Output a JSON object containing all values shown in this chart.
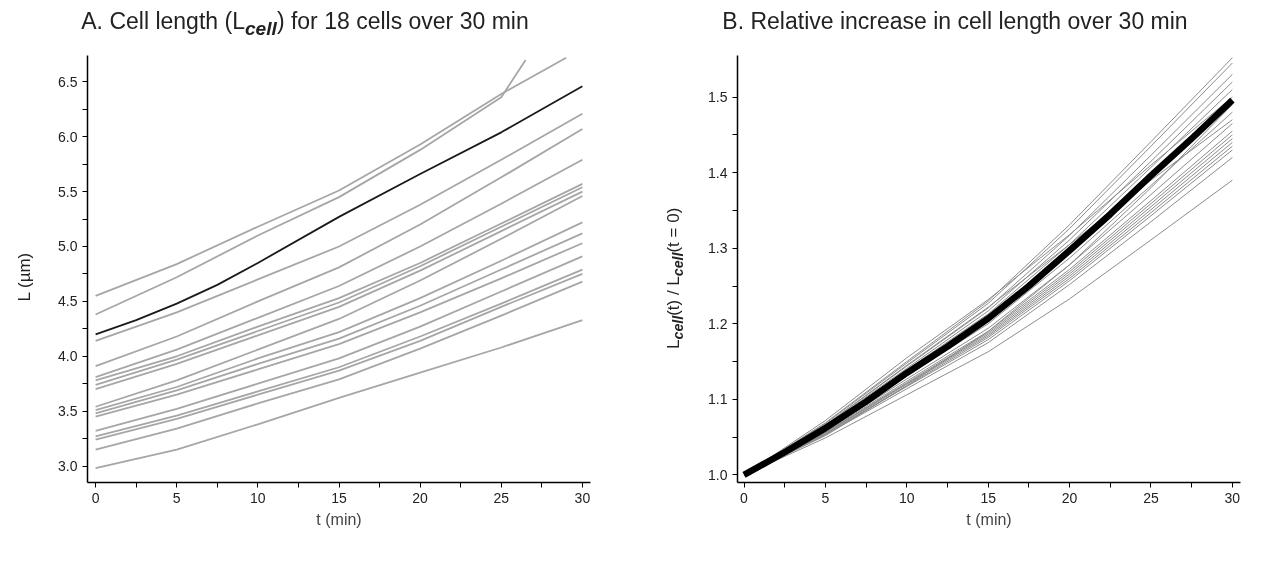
{
  "chart_data": [
    {
      "type": "line",
      "title": "A. Cell length (L$_{cell}$) for 18 cells over 30 min",
      "xlabel": "t (min)",
      "ylabel": "L (µm)",
      "xlim": [
        -0.5,
        30.5
      ],
      "ylim": [
        2.85,
        6.74
      ],
      "xticks": [
        0,
        {
          "value": 2.5,
          "label": null
        },
        5,
        {
          "value": 7.5,
          "label": null
        },
        10,
        {
          "value": 12.5,
          "label": null
        },
        15,
        {
          "value": 17.5,
          "label": null
        },
        20,
        {
          "value": 22.5,
          "label": null
        },
        25,
        {
          "value": 27.5,
          "label": null
        },
        30
      ],
      "yticks": [
        {
          "value": 3,
          "label": "3.0"
        },
        {
          "value": 3.25,
          "label": null
        },
        3.5,
        {
          "value": 3.75,
          "label": null
        },
        {
          "value": 4,
          "label": "4.0"
        },
        {
          "value": 4.25,
          "label": null
        },
        4.5,
        {
          "value": 4.75,
          "label": null
        },
        {
          "value": 5,
          "label": "5.0"
        },
        {
          "value": 5.25,
          "label": null
        },
        5.5,
        {
          "value": 5.75,
          "label": null
        },
        {
          "value": 6,
          "label": "6.0"
        },
        {
          "value": 6.25,
          "label": null
        },
        6.5
      ],
      "x": [
        0,
        5,
        10,
        15,
        20,
        25,
        30
      ],
      "series": [
        {
          "color": "#a6a6a6",
          "x": [
            0,
            5,
            10,
            15,
            20,
            25,
            29
          ],
          "values": [
            4.55,
            4.84,
            5.18,
            5.51,
            5.93,
            6.39,
            6.72
          ]
        },
        {
          "color": "#a6a6a6",
          "x": [
            0,
            5,
            10,
            15,
            20,
            25,
            26.5
          ],
          "values": [
            4.38,
            4.72,
            5.1,
            5.45,
            5.88,
            6.36,
            6.7
          ]
        },
        {
          "color": "#a6a6a6",
          "values": [
            4.14,
            4.4,
            4.7,
            5.0,
            5.38,
            5.79,
            6.21
          ]
        },
        {
          "color": "#a6a6a6",
          "values": [
            3.91,
            4.18,
            4.5,
            4.81,
            5.2,
            5.63,
            6.07
          ]
        },
        {
          "color": "#a6a6a6",
          "values": [
            3.81,
            4.06,
            4.35,
            4.64,
            5.0,
            5.39,
            5.79
          ]
        },
        {
          "color": "#a6a6a6",
          "values": [
            3.78,
            4.0,
            4.27,
            4.53,
            4.85,
            5.21,
            5.57
          ]
        },
        {
          "color": "#a6a6a6",
          "values": [
            3.74,
            3.97,
            4.23,
            4.49,
            4.82,
            5.18,
            5.54
          ]
        },
        {
          "color": "#a6a6a6",
          "values": [
            3.7,
            3.93,
            4.19,
            4.45,
            4.78,
            5.14,
            5.5
          ]
        },
        {
          "color": "#a6a6a6",
          "values": [
            3.54,
            3.78,
            4.06,
            4.34,
            4.69,
            5.07,
            5.46
          ]
        },
        {
          "color": "#a6a6a6",
          "values": [
            3.51,
            3.72,
            3.98,
            4.22,
            4.53,
            4.87,
            5.22
          ]
        },
        {
          "color": "#a6a6a6",
          "values": [
            3.48,
            3.69,
            3.93,
            4.16,
            4.46,
            4.79,
            5.12
          ]
        },
        {
          "color": "#a6a6a6",
          "values": [
            3.45,
            3.65,
            3.88,
            4.11,
            4.4,
            4.71,
            5.03
          ]
        },
        {
          "color": "#a6a6a6",
          "values": [
            3.32,
            3.52,
            3.75,
            3.98,
            4.27,
            4.59,
            4.91
          ]
        },
        {
          "color": "#a6a6a6",
          "values": [
            3.27,
            3.46,
            3.68,
            3.9,
            4.18,
            4.48,
            4.79
          ]
        },
        {
          "color": "#a6a6a6",
          "values": [
            3.24,
            3.43,
            3.65,
            3.87,
            4.14,
            4.45,
            4.75
          ]
        },
        {
          "color": "#a6a6a6",
          "values": [
            3.15,
            3.34,
            3.57,
            3.79,
            4.07,
            4.37,
            4.68
          ]
        },
        {
          "color": "#a6a6a6",
          "values": [
            2.98,
            3.15,
            3.38,
            3.62,
            3.85,
            4.08,
            4.33
          ]
        },
        {
          "color": "#1a1a1a",
          "x": [
            0,
            2.5,
            5,
            7.5,
            10,
            15,
            20,
            25,
            30
          ],
          "values": [
            4.2,
            4.33,
            4.48,
            4.65,
            4.85,
            5.27,
            5.66,
            6.04,
            6.46
          ]
        }
      ]
    },
    {
      "type": "line",
      "title": "B. Relative increase in cell length over 30 min",
      "xlabel": "t (min)",
      "ylabel": "L$_{cell}$(t) / L$_{cell}$(t = 0)",
      "xlim": [
        -0.4,
        30.5
      ],
      "ylim": [
        0.99,
        1.555
      ],
      "xticks": [
        0,
        {
          "value": 2.5,
          "label": null
        },
        5,
        {
          "value": 7.5,
          "label": null
        },
        10,
        {
          "value": 12.5,
          "label": null
        },
        15,
        {
          "value": 17.5,
          "label": null
        },
        20,
        {
          "value": 22.5,
          "label": null
        },
        25,
        {
          "value": 27.5,
          "label": null
        },
        30
      ],
      "yticks": [
        {
          "value": 1,
          "label": "1.0"
        },
        {
          "value": 1.05,
          "label": null
        },
        1.1,
        {
          "value": 1.15,
          "label": null
        },
        1.2,
        {
          "value": 1.25,
          "label": null
        },
        1.3,
        {
          "value": 1.35,
          "label": null
        },
        1.4,
        {
          "value": 1.45,
          "label": null
        },
        1.5
      ],
      "x": [
        0,
        5,
        10,
        15,
        20,
        25,
        30
      ],
      "series": [
        {
          "color": "#8c8c8c",
          "values": [
            1,
            1.069,
            1.15,
            1.23,
            1.331,
            1.441,
            1.552
          ]
        },
        {
          "color": "#8c8c8c",
          "values": [
            1,
            1.068,
            1.148,
            1.227,
            1.326,
            1.435,
            1.545
          ]
        },
        {
          "color": "#8c8c8c",
          "values": [
            1,
            1.066,
            1.144,
            1.221,
            1.317,
            1.423,
            1.53
          ]
        },
        {
          "color": "#8c8c8c",
          "values": [
            1,
            1.065,
            1.141,
            1.217,
            1.311,
            1.415,
            1.52
          ]
        },
        {
          "color": "#8c8c8c",
          "values": [
            1,
            1.064,
            1.139,
            1.213,
            1.305,
            1.407,
            1.51
          ]
        },
        {
          "color": "#8c8c8c",
          "values": [
            1,
            1.072,
            1.155,
            1.232,
            1.318,
            1.41,
            1.5
          ]
        },
        {
          "color": "#8c8c8c",
          "values": [
            1,
            1.052,
            1.118,
            1.19,
            1.278,
            1.38,
            1.49
          ]
        },
        {
          "color": "#8c8c8c",
          "values": [
            1,
            1.06,
            1.131,
            1.2,
            1.287,
            1.383,
            1.48
          ]
        },
        {
          "color": "#8c8c8c",
          "values": [
            1,
            1.066,
            1.145,
            1.222,
            1.305,
            1.39,
            1.47
          ]
        },
        {
          "color": "#8c8c8c",
          "values": [
            1,
            1.058,
            1.127,
            1.194,
            1.278,
            1.371,
            1.465
          ]
        },
        {
          "color": "#8c8c8c",
          "values": [
            1,
            1.057,
            1.124,
            1.19,
            1.272,
            1.363,
            1.455
          ]
        },
        {
          "color": "#8c8c8c",
          "values": [
            1,
            1.056,
            1.122,
            1.188,
            1.269,
            1.359,
            1.45
          ]
        },
        {
          "color": "#8c8c8c",
          "values": [
            1,
            1.056,
            1.121,
            1.186,
            1.266,
            1.355,
            1.445
          ]
        },
        {
          "color": "#8c8c8c",
          "values": [
            1,
            1.055,
            1.12,
            1.184,
            1.263,
            1.351,
            1.44
          ]
        },
        {
          "color": "#8c8c8c",
          "values": [
            1,
            1.054,
            1.118,
            1.182,
            1.26,
            1.347,
            1.435
          ]
        },
        {
          "color": "#8c8c8c",
          "values": [
            1,
            1.054,
            1.117,
            1.179,
            1.257,
            1.343,
            1.43
          ]
        },
        {
          "color": "#8c8c8c",
          "values": [
            1,
            1.053,
            1.114,
            1.175,
            1.252,
            1.335,
            1.42
          ]
        },
        {
          "color": "#8c8c8c",
          "values": [
            1,
            1.049,
            1.106,
            1.163,
            1.233,
            1.311,
            1.39
          ]
        },
        {
          "color": "#000000",
          "x": [
            0,
            2.5,
            5,
            7.5,
            10,
            12.5,
            15,
            17.5,
            20,
            22.5,
            25,
            27.5,
            30
          ],
          "values": [
            1.0,
            1.03,
            1.062,
            1.097,
            1.135,
            1.17,
            1.207,
            1.25,
            1.297,
            1.345,
            1.396,
            1.445,
            1.496
          ]
        }
      ]
    }
  ]
}
